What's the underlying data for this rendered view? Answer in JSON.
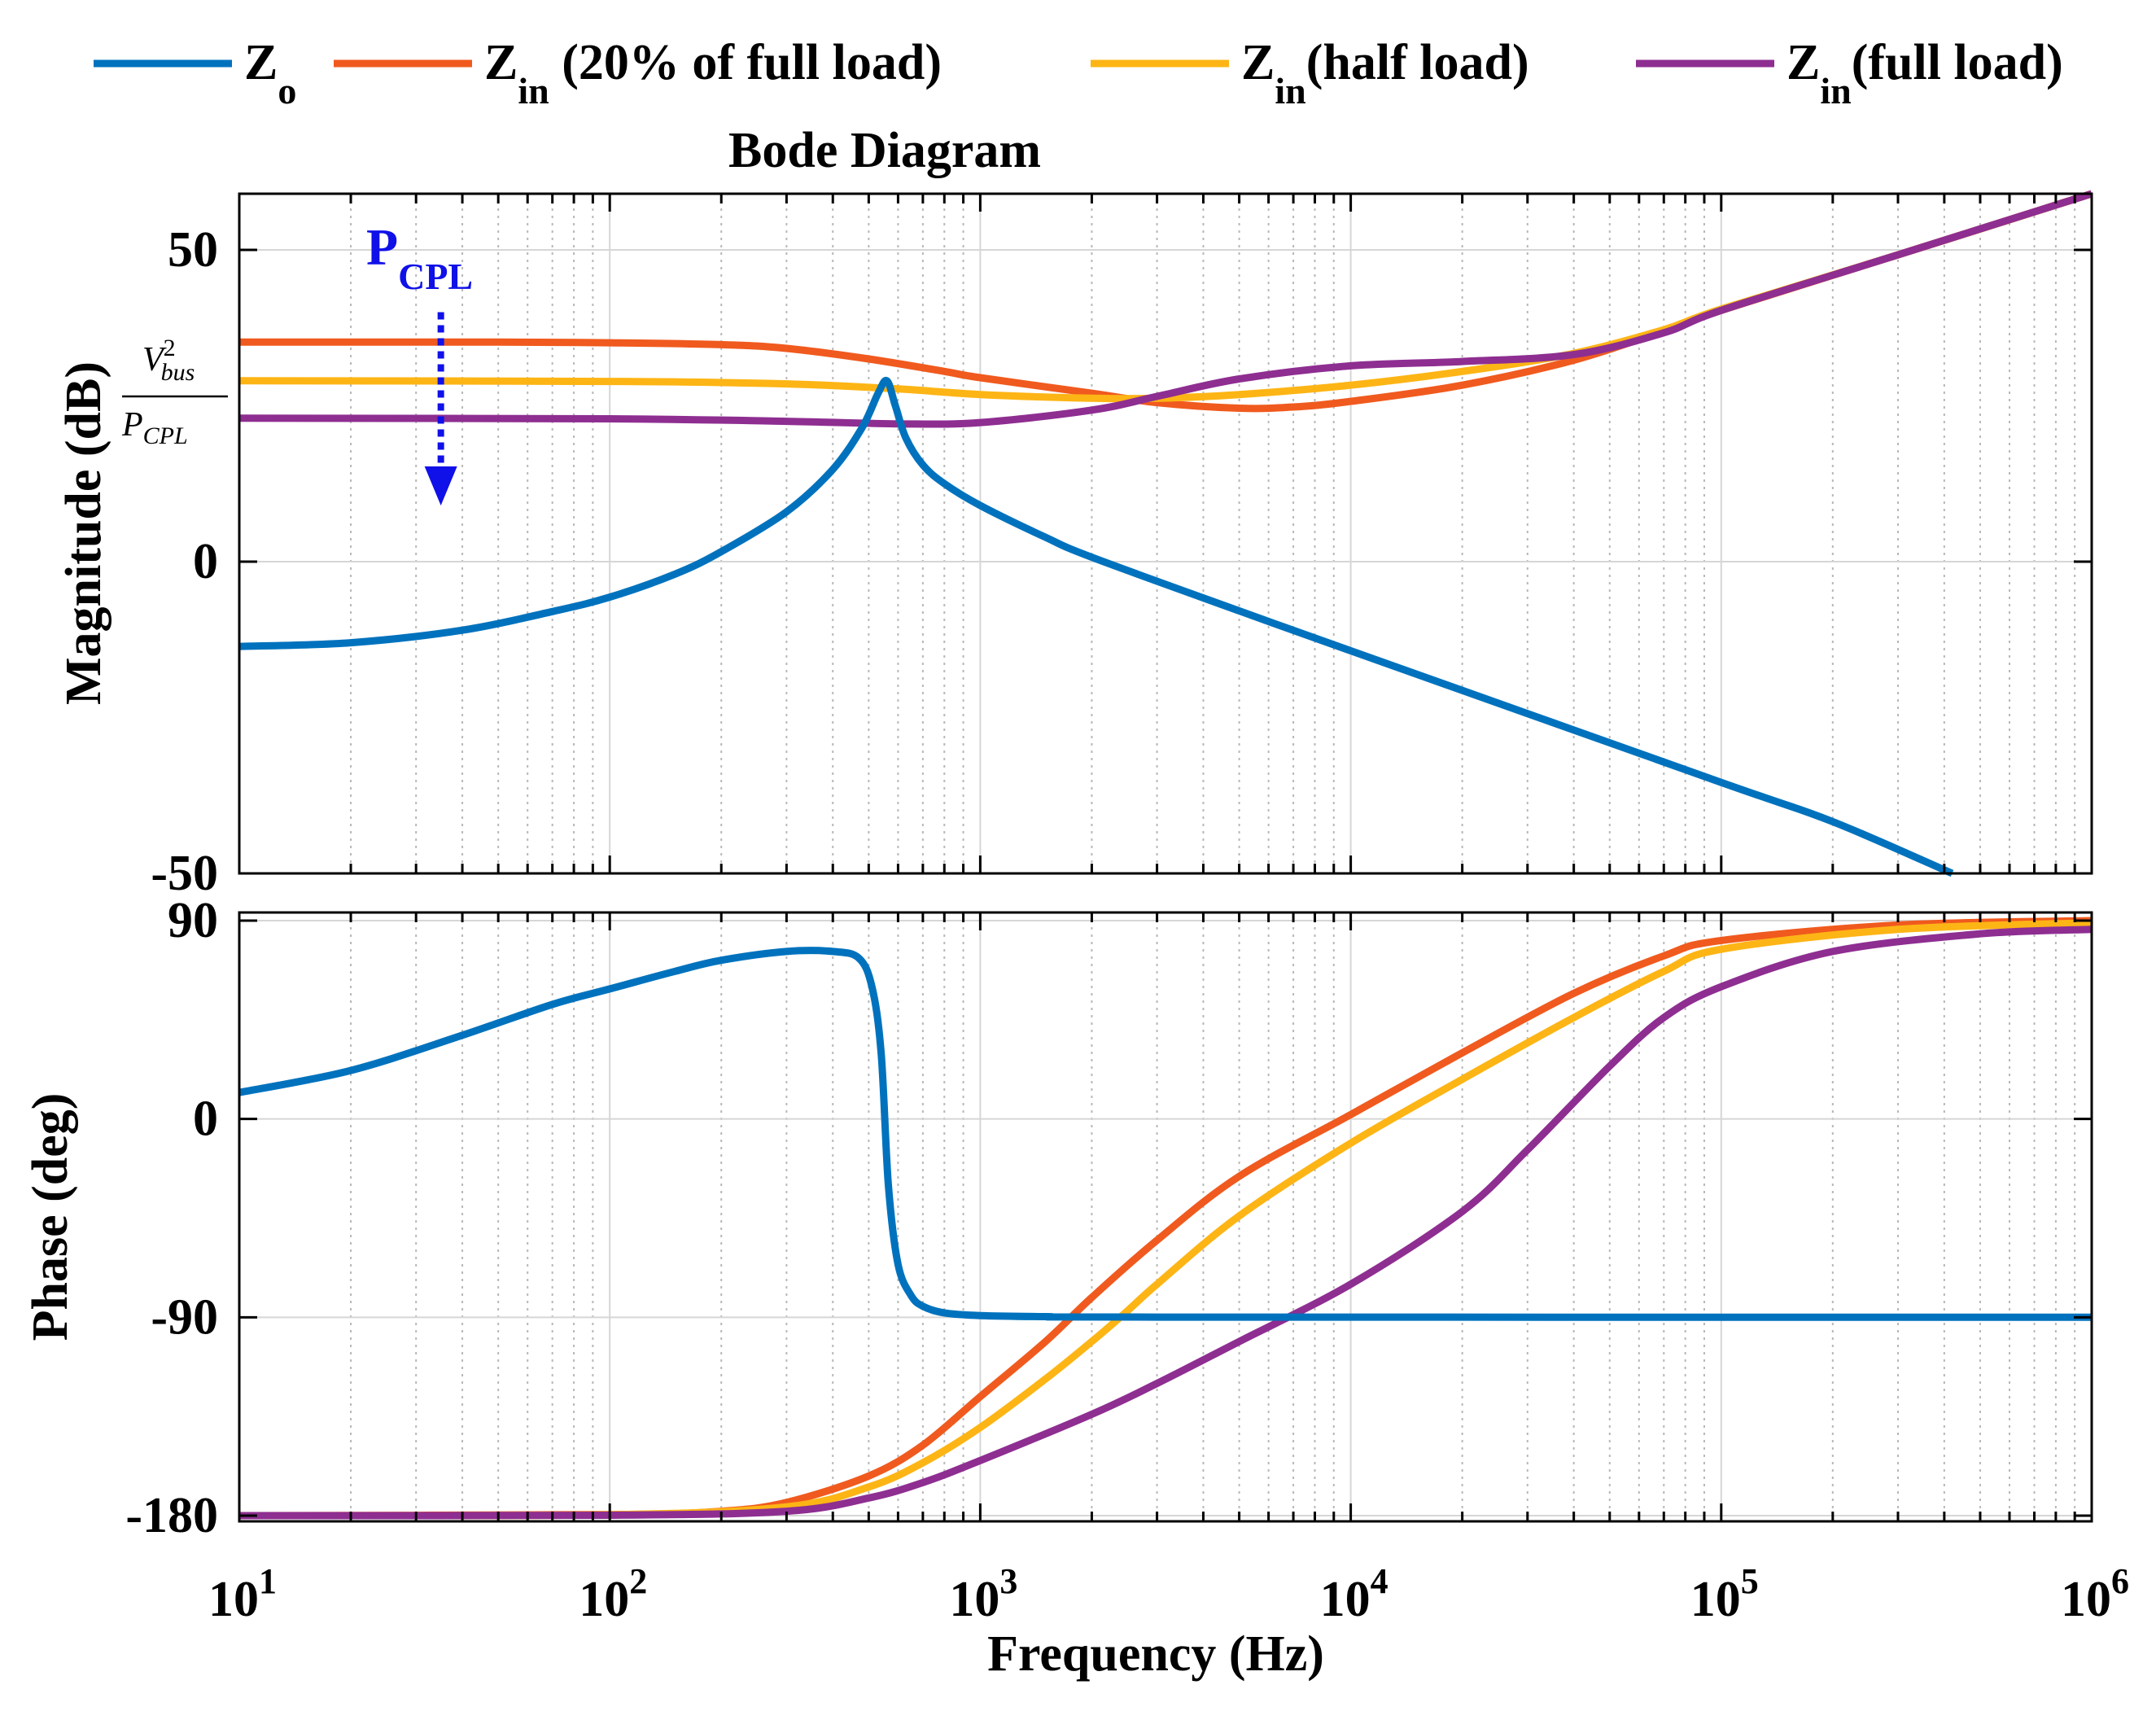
{
  "chart_data": {
    "type": "line",
    "title": "Bode Diagram",
    "xlabel": "Frequency  (Hz)",
    "xscale": "log",
    "xlim": [
      10,
      1000000
    ],
    "x_ticks": [
      {
        "base": "10",
        "exp": "1"
      },
      {
        "base": "10",
        "exp": "2"
      },
      {
        "base": "10",
        "exp": "3"
      },
      {
        "base": "10",
        "exp": "4"
      },
      {
        "base": "10",
        "exp": "5"
      },
      {
        "base": "10",
        "exp": "6"
      }
    ],
    "grid": true,
    "legend": {
      "placement": "top",
      "entries": [
        {
          "id": "zo",
          "main": "Z",
          "sub": "o",
          "suffix": "",
          "color": "#0072BD"
        },
        {
          "id": "z20",
          "main": "Z",
          "sub": "in",
          "suffix": " (20% of full load)",
          "color": "#F05A1E"
        },
        {
          "id": "zhalf",
          "main": "Z",
          "sub": "in",
          "suffix": "(half load)",
          "color": "#FDB515"
        },
        {
          "id": "zfull",
          "main": "Z",
          "sub": "in",
          "suffix": "(full load)",
          "color": "#8E2E91"
        }
      ]
    },
    "magnitude": {
      "ylabel": "Magnitude (dB)",
      "ylim": [
        -50,
        59
      ],
      "yticks": [
        "50",
        "0",
        "-50"
      ],
      "ytick_values": [
        50,
        0,
        -50
      ],
      "annotation": {
        "label_main": "P",
        "label_sub": "CPL",
        "color": "#1010E8",
        "arrow_x": 35,
        "arrow_from_db": 40,
        "arrow_to_db": 9
      },
      "fraction_label": {
        "num_main": "V",
        "num_sup": "2",
        "num_sub": "bus",
        "den_main": "P",
        "den_sub": "CPL"
      },
      "series": [
        {
          "id": "zo",
          "points": [
            [
              10,
              -13.6
            ],
            [
              20,
              -13
            ],
            [
              40,
              -11
            ],
            [
              70,
              -8
            ],
            [
              100,
              -5.7
            ],
            [
              150,
              -2
            ],
            [
              200,
              1.6
            ],
            [
              300,
              8
            ],
            [
              400,
              14.8
            ],
            [
              480,
              21.5
            ],
            [
              530,
              27
            ],
            [
              560,
              29
            ],
            [
              590,
              25
            ],
            [
              630,
              19.8
            ],
            [
              700,
              15.5
            ],
            [
              800,
              12.5
            ],
            [
              1000,
              9
            ],
            [
              1500,
              3.9
            ],
            [
              2000,
              0.7
            ],
            [
              5000,
              -7.9
            ],
            [
              10000,
              -14.3
            ],
            [
              100000,
              -35.4
            ],
            [
              200000,
              -41.7
            ],
            [
              420000,
              -50
            ]
          ]
        },
        {
          "id": "z20",
          "points": [
            [
              10,
              35.2
            ],
            [
              50,
              35.2
            ],
            [
              100,
              35.1
            ],
            [
              200,
              34.8
            ],
            [
              300,
              34.2
            ],
            [
              500,
              32.5
            ],
            [
              800,
              30.5
            ],
            [
              1000,
              29.5
            ],
            [
              2000,
              27
            ],
            [
              3000,
              25.5
            ],
            [
              5000,
              24.6
            ],
            [
              7000,
              24.8
            ],
            [
              10000,
              25.7
            ],
            [
              20000,
              28.3
            ],
            [
              40000,
              32.3
            ],
            [
              70000,
              37
            ],
            [
              100000,
              40.3
            ],
            [
              300000,
              49.2
            ],
            [
              1000000,
              59
            ]
          ]
        },
        {
          "id": "zhalf",
          "points": [
            [
              10,
              29
            ],
            [
              100,
              28.9
            ],
            [
              300,
              28.5
            ],
            [
              600,
              27.7
            ],
            [
              1000,
              26.8
            ],
            [
              2000,
              26.2
            ],
            [
              3000,
              26.2
            ],
            [
              5000,
              26.8
            ],
            [
              10000,
              28.3
            ],
            [
              20000,
              30.5
            ],
            [
              40000,
              33.4
            ],
            [
              70000,
              37.2
            ],
            [
              100000,
              40.5
            ],
            [
              300000,
              49.2
            ],
            [
              1000000,
              59
            ]
          ]
        },
        {
          "id": "zfull",
          "points": [
            [
              10,
              23
            ],
            [
              100,
              22.9
            ],
            [
              300,
              22.5
            ],
            [
              600,
              22.1
            ],
            [
              1000,
              22.3
            ],
            [
              2000,
              24.3
            ],
            [
              3000,
              26.5
            ],
            [
              5000,
              29.3
            ],
            [
              10000,
              31.4
            ],
            [
              20000,
              32.1
            ],
            [
              40000,
              33.2
            ],
            [
              70000,
              36.7
            ],
            [
              100000,
              40.3
            ],
            [
              300000,
              49.2
            ],
            [
              1000000,
              59
            ]
          ]
        }
      ]
    },
    "phase": {
      "ylabel": "Phase (deg)",
      "ylim": [
        -180,
        92
      ],
      "yticks": [
        "90",
        "0",
        "-90",
        "-180"
      ],
      "ytick_values": [
        90,
        0,
        -90,
        -180
      ],
      "series": [
        {
          "id": "zo",
          "points": [
            [
              10,
              12
            ],
            [
              20,
              22
            ],
            [
              40,
              38
            ],
            [
              70,
              52
            ],
            [
              100,
              59
            ],
            [
              150,
              67
            ],
            [
              200,
              72
            ],
            [
              300,
              76
            ],
            [
              400,
              76
            ],
            [
              470,
              73
            ],
            [
              510,
              60
            ],
            [
              540,
              30
            ],
            [
              565,
              -30
            ],
            [
              600,
              -66
            ],
            [
              650,
              -80
            ],
            [
              700,
              -85
            ],
            [
              800,
              -88
            ],
            [
              1000,
              -89.2
            ],
            [
              1500,
              -89.7
            ],
            [
              3000,
              -89.9
            ],
            [
              1000000,
              -90
            ]
          ]
        },
        {
          "id": "z20",
          "points": [
            [
              10,
              -180
            ],
            [
              100,
              -179.5
            ],
            [
              200,
              -178
            ],
            [
              300,
              -174
            ],
            [
              500,
              -162
            ],
            [
              700,
              -148
            ],
            [
              1000,
              -126
            ],
            [
              1500,
              -101
            ],
            [
              2000,
              -81
            ],
            [
              3000,
              -55
            ],
            [
              5000,
              -26
            ],
            [
              10000,
              2
            ],
            [
              20000,
              30
            ],
            [
              40000,
              57
            ],
            [
              70000,
              74
            ],
            [
              100000,
              81
            ],
            [
              300000,
              88
            ],
            [
              1000000,
              90
            ]
          ]
        },
        {
          "id": "zhalf",
          "points": [
            [
              10,
              -180
            ],
            [
              100,
              -179.6
            ],
            [
              300,
              -176
            ],
            [
              500,
              -167
            ],
            [
              700,
              -156
            ],
            [
              1000,
              -140
            ],
            [
              1500,
              -118
            ],
            [
              2000,
              -101
            ],
            [
              2500,
              -87
            ],
            [
              3000,
              -75
            ],
            [
              5000,
              -44
            ],
            [
              10000,
              -11
            ],
            [
              20000,
              18
            ],
            [
              40000,
              46
            ],
            [
              70000,
              67
            ],
            [
              100000,
              77
            ],
            [
              300000,
              86
            ],
            [
              1000000,
              89
            ]
          ]
        },
        {
          "id": "zfull",
          "points": [
            [
              10,
              -180
            ],
            [
              100,
              -179.8
            ],
            [
              300,
              -178
            ],
            [
              500,
              -172
            ],
            [
              700,
              -165
            ],
            [
              1000,
              -155
            ],
            [
              2000,
              -134
            ],
            [
              3000,
              -120
            ],
            [
              5000,
              -101
            ],
            [
              10000,
              -75
            ],
            [
              20000,
              -42
            ],
            [
              30000,
              -14
            ],
            [
              50000,
              24
            ],
            [
              70000,
              46
            ],
            [
              100000,
              60
            ],
            [
              200000,
              76
            ],
            [
              500000,
              84
            ],
            [
              1000000,
              86
            ]
          ]
        }
      ]
    }
  }
}
